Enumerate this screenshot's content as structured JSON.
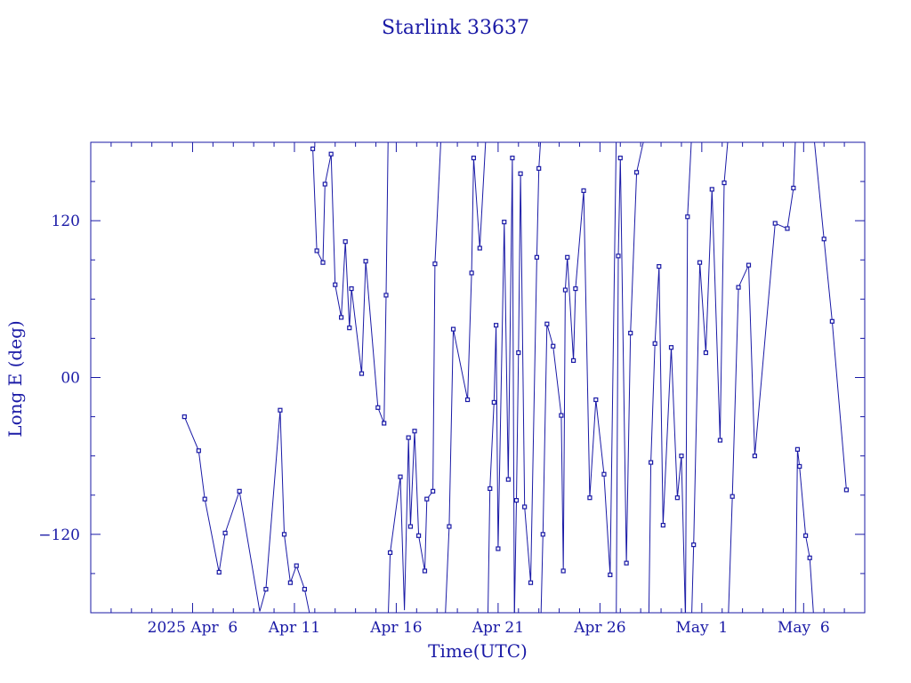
{
  "chart_data": {
    "type": "line",
    "title": "Starlink 33637",
    "xlabel": "Time(UTC)",
    "ylabel": "Long E (deg)",
    "x_unit": "days",
    "xlim": [
      1,
      39
    ],
    "ylim": [
      -180,
      180
    ],
    "x_ticks": [
      {
        "value": 6,
        "label": "2025 Apr  6"
      },
      {
        "value": 11,
        "label": "Apr 11"
      },
      {
        "value": 16,
        "label": "Apr 16"
      },
      {
        "value": 21,
        "label": "Apr 21"
      },
      {
        "value": 26,
        "label": "Apr 26"
      },
      {
        "value": 31,
        "label": "May  1"
      },
      {
        "value": 36,
        "label": "May  6"
      }
    ],
    "y_ticks": [
      {
        "value": -120,
        "label": "−120"
      },
      {
        "value": 0,
        "label": "00"
      },
      {
        "value": 120,
        "label": "120"
      }
    ],
    "x_minor_step": 1,
    "y_minor_step": 30,
    "grid": false,
    "series": [
      {
        "points": [
          [
            5.6,
            -30
          ],
          [
            6.3,
            -56
          ],
          [
            6.6,
            -93
          ],
          [
            7.3,
            -149
          ],
          [
            7.6,
            -119
          ],
          [
            8.3,
            -87
          ],
          [
            9.3,
            -179
          ],
          [
            9.6,
            -162
          ],
          [
            10.3,
            -25
          ],
          [
            10.5,
            -120
          ],
          [
            10.8,
            -157
          ],
          [
            11.1,
            -144
          ],
          [
            11.5,
            -162
          ],
          [
            11.8,
            -185
          ],
          "break",
          [
            11.9,
            175
          ],
          [
            12.1,
            97
          ],
          [
            12.4,
            88
          ],
          [
            12.5,
            148
          ],
          [
            12.8,
            171
          ],
          [
            13.0,
            71
          ],
          [
            13.3,
            46
          ],
          [
            13.5,
            104
          ],
          [
            13.7,
            38
          ],
          [
            13.8,
            68
          ],
          [
            14.3,
            3
          ],
          [
            14.5,
            89
          ],
          [
            15.1,
            -23
          ],
          [
            15.4,
            -35
          ],
          [
            15.5,
            63
          ],
          [
            15.6,
            185
          ],
          "break",
          [
            15.6,
            -185
          ],
          [
            15.7,
            -134
          ],
          [
            16.2,
            -76
          ],
          [
            16.4,
            -178
          ],
          [
            16.6,
            -46
          ],
          [
            16.7,
            -114
          ],
          [
            16.9,
            -41
          ],
          [
            17.1,
            -121
          ],
          [
            17.4,
            -148
          ],
          [
            17.5,
            -93
          ],
          [
            17.8,
            -87
          ],
          [
            17.9,
            87
          ],
          [
            18.2,
            185
          ],
          "break",
          [
            18.4,
            -185
          ],
          [
            18.6,
            -114
          ],
          [
            18.8,
            37
          ],
          [
            19.5,
            -17
          ],
          [
            19.7,
            80
          ],
          [
            19.8,
            168
          ],
          [
            20.1,
            99
          ],
          [
            20.4,
            185
          ],
          "break",
          [
            20.5,
            -185
          ],
          [
            20.6,
            -85
          ],
          [
            20.8,
            -19
          ],
          [
            20.9,
            40
          ],
          [
            21.0,
            -131
          ],
          [
            21.3,
            119
          ],
          [
            21.5,
            -78
          ],
          [
            21.7,
            168
          ],
          [
            21.8,
            -185
          ],
          "break",
          [
            21.8,
            -185
          ],
          [
            21.9,
            -94
          ],
          [
            22.0,
            19
          ],
          [
            22.1,
            156
          ],
          [
            22.3,
            -99
          ],
          [
            22.6,
            -157
          ],
          [
            22.9,
            92
          ],
          [
            23.0,
            160
          ],
          [
            23.1,
            185
          ],
          "break",
          [
            23.1,
            -185
          ],
          [
            23.2,
            -120
          ],
          [
            23.4,
            41
          ],
          [
            23.7,
            24
          ],
          [
            24.1,
            -29
          ],
          [
            24.2,
            -148
          ],
          [
            24.3,
            67
          ],
          [
            24.4,
            92
          ],
          [
            24.7,
            13
          ],
          [
            24.8,
            68
          ],
          [
            25.2,
            143
          ],
          [
            25.5,
            -92
          ],
          [
            25.8,
            -17
          ],
          [
            26.2,
            -74
          ],
          [
            26.5,
            -151
          ],
          [
            26.8,
            185
          ],
          "break",
          [
            26.8,
            -185
          ],
          [
            26.9,
            93
          ],
          [
            27.0,
            168
          ],
          [
            27.3,
            -142
          ],
          [
            27.5,
            34
          ],
          [
            27.8,
            157
          ],
          [
            28.2,
            185
          ],
          "break",
          [
            28.4,
            -185
          ],
          [
            28.5,
            -65
          ],
          [
            28.7,
            26
          ],
          [
            28.9,
            85
          ],
          [
            29.1,
            -113
          ],
          [
            29.5,
            23
          ],
          [
            29.8,
            -92
          ],
          [
            30.0,
            -60
          ],
          [
            30.2,
            -185
          ],
          "break",
          [
            30.2,
            -185
          ],
          [
            30.3,
            123
          ],
          [
            30.5,
            185
          ],
          "break",
          [
            30.5,
            -185
          ],
          [
            30.6,
            -128
          ],
          [
            30.9,
            88
          ],
          [
            31.2,
            19
          ],
          [
            31.5,
            144
          ],
          [
            31.9,
            -48
          ],
          [
            32.1,
            149
          ],
          [
            32.3,
            185
          ],
          "break",
          [
            32.3,
            -185
          ],
          [
            32.5,
            -91
          ],
          [
            32.8,
            69
          ],
          [
            33.3,
            86
          ],
          [
            33.6,
            -60
          ],
          [
            34.6,
            118
          ],
          [
            35.2,
            114
          ],
          [
            35.5,
            145
          ],
          [
            35.6,
            185
          ],
          "break",
          [
            35.6,
            -185
          ],
          [
            35.7,
            -55
          ],
          [
            35.8,
            -68
          ],
          [
            36.1,
            -121
          ],
          [
            36.3,
            -138
          ],
          [
            36.5,
            -185
          ],
          "break",
          [
            36.5,
            185
          ],
          [
            37.0,
            106
          ],
          [
            37.4,
            43
          ],
          [
            38.1,
            -86
          ]
        ]
      }
    ]
  }
}
